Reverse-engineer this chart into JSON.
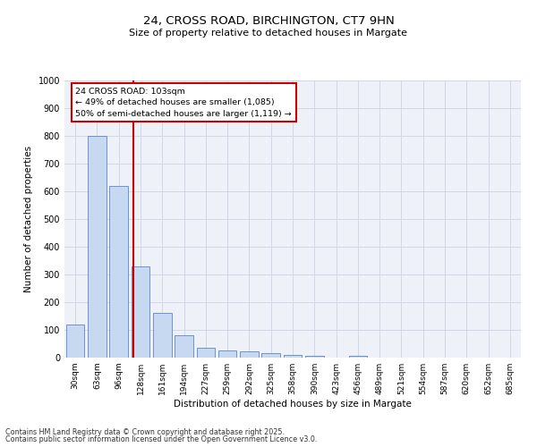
{
  "title1": "24, CROSS ROAD, BIRCHINGTON, CT7 9HN",
  "title2": "Size of property relative to detached houses in Margate",
  "xlabel": "Distribution of detached houses by size in Margate",
  "ylabel": "Number of detached properties",
  "categories": [
    "30sqm",
    "63sqm",
    "96sqm",
    "128sqm",
    "161sqm",
    "194sqm",
    "227sqm",
    "259sqm",
    "292sqm",
    "325sqm",
    "358sqm",
    "390sqm",
    "423sqm",
    "456sqm",
    "489sqm",
    "521sqm",
    "554sqm",
    "587sqm",
    "620sqm",
    "652sqm",
    "685sqm"
  ],
  "values": [
    120,
    800,
    620,
    330,
    160,
    80,
    37,
    25,
    22,
    15,
    10,
    5,
    0,
    5,
    0,
    0,
    0,
    0,
    0,
    0,
    0
  ],
  "bar_color": "#c6d9f1",
  "bar_edgecolor": "#4472c4",
  "vline_x": 2.65,
  "vline_color": "#cc0000",
  "annotation_text": "24 CROSS ROAD: 103sqm\n← 49% of detached houses are smaller (1,085)\n50% of semi-detached houses are larger (1,119) →",
  "annotation_box_color": "#cc0000",
  "ylim": [
    0,
    1000
  ],
  "yticks": [
    0,
    100,
    200,
    300,
    400,
    500,
    600,
    700,
    800,
    900,
    1000
  ],
  "grid_color": "#d0d8e8",
  "background_color": "#eef2f8",
  "footer1": "Contains HM Land Registry data © Crown copyright and database right 2025.",
  "footer2": "Contains public sector information licensed under the Open Government Licence v3.0."
}
